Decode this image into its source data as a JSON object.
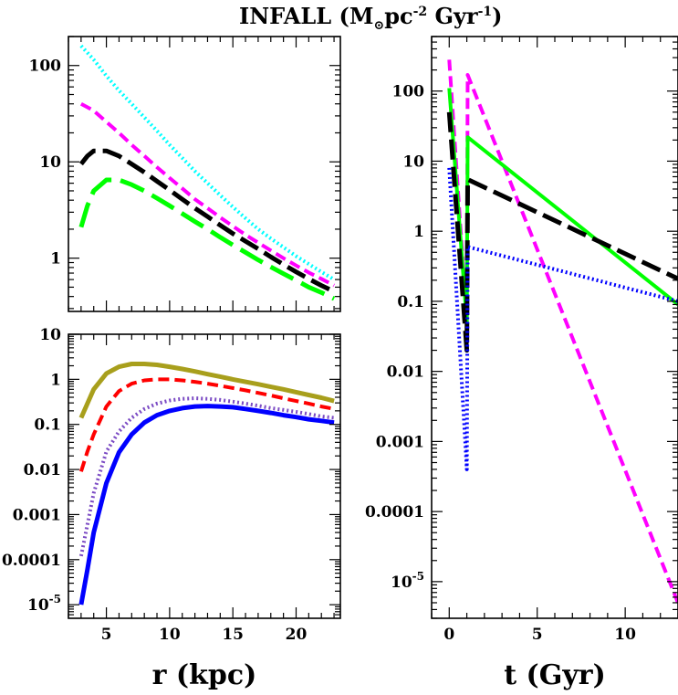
{
  "title_main": "INFALL (M",
  "title_sub": "⊙",
  "title_rest": "pc",
  "title_exp1": "-2",
  "title_mid": " Gyr",
  "title_exp2": "-1",
  "title_close": ")",
  "chart_data": [
    {
      "id": "top-left",
      "type": "line",
      "yscale": "log",
      "xlim": [
        2,
        23.5
      ],
      "ylim": [
        0.28,
        200
      ],
      "xticks": [
        5,
        10,
        15,
        20
      ],
      "show_x_tick_labels": false,
      "yticks": [
        {
          "v": 1,
          "label": "1"
        },
        {
          "v": 10,
          "label": "10"
        },
        {
          "v": 100,
          "label": "100"
        }
      ],
      "series": [
        {
          "color": "#00ffff",
          "dash": "2,3",
          "width": 4,
          "x": [
            3,
            4,
            5,
            6,
            7,
            8,
            9,
            10,
            11,
            12,
            13,
            14,
            15,
            16,
            17,
            18,
            19,
            20,
            21,
            22,
            23
          ],
          "y": [
            160,
            115,
            78,
            55,
            40,
            29,
            21,
            15,
            11,
            8,
            6,
            4.5,
            3.4,
            2.6,
            2.0,
            1.6,
            1.3,
            1.05,
            0.87,
            0.72,
            0.6
          ]
        },
        {
          "color": "#ff00ff",
          "dash": "12,6",
          "width": 4,
          "x": [
            3,
            4,
            5,
            6,
            7,
            8,
            9,
            10,
            11,
            12,
            13,
            14,
            15,
            16,
            17,
            18,
            19,
            20,
            21,
            22,
            23
          ],
          "y": [
            40,
            34,
            26,
            20,
            15,
            11.5,
            8.8,
            6.8,
            5.3,
            4.1,
            3.3,
            2.65,
            2.15,
            1.75,
            1.45,
            1.2,
            1.0,
            0.84,
            0.71,
            0.61,
            0.52
          ]
        },
        {
          "color": "#000000",
          "dash": "22,8",
          "width": 5,
          "x": [
            3,
            3.5,
            4,
            5,
            6,
            7,
            8,
            9,
            10,
            11,
            12,
            13,
            14,
            15,
            16,
            17,
            18,
            19,
            20,
            21,
            22,
            23
          ],
          "y": [
            9.5,
            11.5,
            13,
            13,
            11.5,
            9.5,
            7.8,
            6.3,
            5.1,
            4.1,
            3.3,
            2.7,
            2.2,
            1.8,
            1.5,
            1.25,
            1.03,
            0.86,
            0.72,
            0.61,
            0.52,
            0.45
          ]
        },
        {
          "color": "#00ff00",
          "dash": "28,10",
          "width": 5,
          "x": [
            3,
            3.5,
            4,
            5,
            6,
            7,
            8,
            9,
            10,
            11,
            12,
            13,
            14,
            15,
            16,
            17,
            18,
            19,
            20,
            21,
            22,
            23
          ],
          "y": [
            2.1,
            3.5,
            5,
            6.5,
            6.5,
            5.8,
            5.0,
            4.2,
            3.5,
            2.9,
            2.4,
            2.0,
            1.65,
            1.37,
            1.15,
            0.96,
            0.81,
            0.69,
            0.59,
            0.5,
            0.44,
            0.38
          ]
        }
      ]
    },
    {
      "id": "bottom-left",
      "type": "line",
      "yscale": "log",
      "xlim": [
        2,
        23.5
      ],
      "ylim": [
        5e-06,
        10
      ],
      "xticks": [
        5,
        10,
        15,
        20
      ],
      "show_x_tick_labels": true,
      "yticks": [
        {
          "v": 1e-05,
          "label": "10",
          "sup": "-5"
        },
        {
          "v": 0.0001,
          "label": "0.0001"
        },
        {
          "v": 0.001,
          "label": "0.001"
        },
        {
          "v": 0.01,
          "label": "0.01"
        },
        {
          "v": 0.1,
          "label": "0.1"
        },
        {
          "v": 1,
          "label": "1"
        },
        {
          "v": 10,
          "label": "10"
        }
      ],
      "xlabel": "r  (kpc)",
      "series": [
        {
          "color": "#a89f1c",
          "dash": "",
          "width": 5,
          "x": [
            3,
            4,
            5,
            6,
            7,
            8,
            9,
            10,
            11,
            12,
            13,
            14,
            15,
            16,
            17,
            18,
            19,
            20,
            21,
            22,
            23
          ],
          "y": [
            0.14,
            0.6,
            1.35,
            1.9,
            2.2,
            2.2,
            2.1,
            1.9,
            1.7,
            1.5,
            1.3,
            1.15,
            1.0,
            0.88,
            0.78,
            0.68,
            0.6,
            0.52,
            0.45,
            0.39,
            0.33
          ]
        },
        {
          "color": "#ff0000",
          "dash": "12,6",
          "width": 4,
          "x": [
            3,
            3.5,
            4,
            5,
            6,
            7,
            8,
            9,
            10,
            11,
            12,
            13,
            14,
            15,
            16,
            17,
            18,
            19,
            20,
            21,
            22,
            23
          ],
          "y": [
            0.009,
            0.025,
            0.06,
            0.25,
            0.55,
            0.8,
            0.95,
            1.0,
            1.0,
            0.95,
            0.88,
            0.8,
            0.72,
            0.64,
            0.57,
            0.5,
            0.44,
            0.38,
            0.33,
            0.29,
            0.25,
            0.22
          ]
        },
        {
          "color": "#7b4bc4",
          "dash": "2,3",
          "width": 4,
          "x": [
            3,
            3.5,
            4,
            5,
            6,
            7,
            8,
            9,
            10,
            11,
            12,
            13,
            14,
            15,
            16,
            17,
            18,
            19,
            20,
            21,
            22,
            23
          ],
          "y": [
            0.00012,
            0.0006,
            0.003,
            0.025,
            0.07,
            0.14,
            0.22,
            0.29,
            0.34,
            0.37,
            0.38,
            0.37,
            0.35,
            0.32,
            0.29,
            0.26,
            0.23,
            0.21,
            0.19,
            0.17,
            0.15,
            0.14
          ]
        },
        {
          "color": "#0000ff",
          "dash": "",
          "width": 5,
          "x": [
            3,
            3.5,
            4,
            5,
            6,
            7,
            8,
            9,
            10,
            11,
            12,
            13,
            14,
            15,
            16,
            17,
            18,
            19,
            20,
            21,
            22,
            23
          ],
          "y": [
            1e-05,
            6e-05,
            0.0004,
            0.005,
            0.024,
            0.06,
            0.11,
            0.16,
            0.2,
            0.23,
            0.25,
            0.255,
            0.25,
            0.24,
            0.22,
            0.2,
            0.18,
            0.16,
            0.145,
            0.13,
            0.12,
            0.11
          ]
        }
      ]
    },
    {
      "id": "right",
      "type": "line",
      "yscale": "log",
      "xlim": [
        -1,
        13
      ],
      "ylim": [
        3e-06,
        600
      ],
      "xticks": [
        0,
        5,
        10
      ],
      "show_x_tick_labels": true,
      "yticks": [
        {
          "v": 1e-05,
          "label": "10",
          "sup": "-5"
        },
        {
          "v": 0.0001,
          "label": "0.0001"
        },
        {
          "v": 0.001,
          "label": "0.001"
        },
        {
          "v": 0.01,
          "label": "0.01"
        },
        {
          "v": 0.1,
          "label": "0.1"
        },
        {
          "v": 1,
          "label": "1"
        },
        {
          "v": 10,
          "label": "10"
        },
        {
          "v": 100,
          "label": "100"
        }
      ],
      "xlabel": "t  (Gyr)",
      "series": [
        {
          "color": "#ff00ff",
          "dash": "12,6",
          "width": 4,
          "x": [
            0,
            1,
            1.05,
            13
          ],
          "y": [
            280,
            0.05,
            170,
            5e-06
          ]
        },
        {
          "color": "#00ff00",
          "dash": "",
          "width": 4,
          "x": [
            0,
            1,
            1.05,
            13
          ],
          "y": [
            110,
            0.05,
            22,
            0.09
          ]
        },
        {
          "color": "#000000",
          "dash": "22,8",
          "width": 5,
          "x": [
            0,
            1,
            1.05,
            13
          ],
          "y": [
            50,
            0.02,
            5.5,
            0.21
          ]
        },
        {
          "color": "#0000ff",
          "dash": "2,3",
          "width": 4,
          "x": [
            0,
            1,
            1.05,
            13
          ],
          "y": [
            8,
            0.0004,
            0.6,
            0.1
          ]
        }
      ]
    }
  ]
}
